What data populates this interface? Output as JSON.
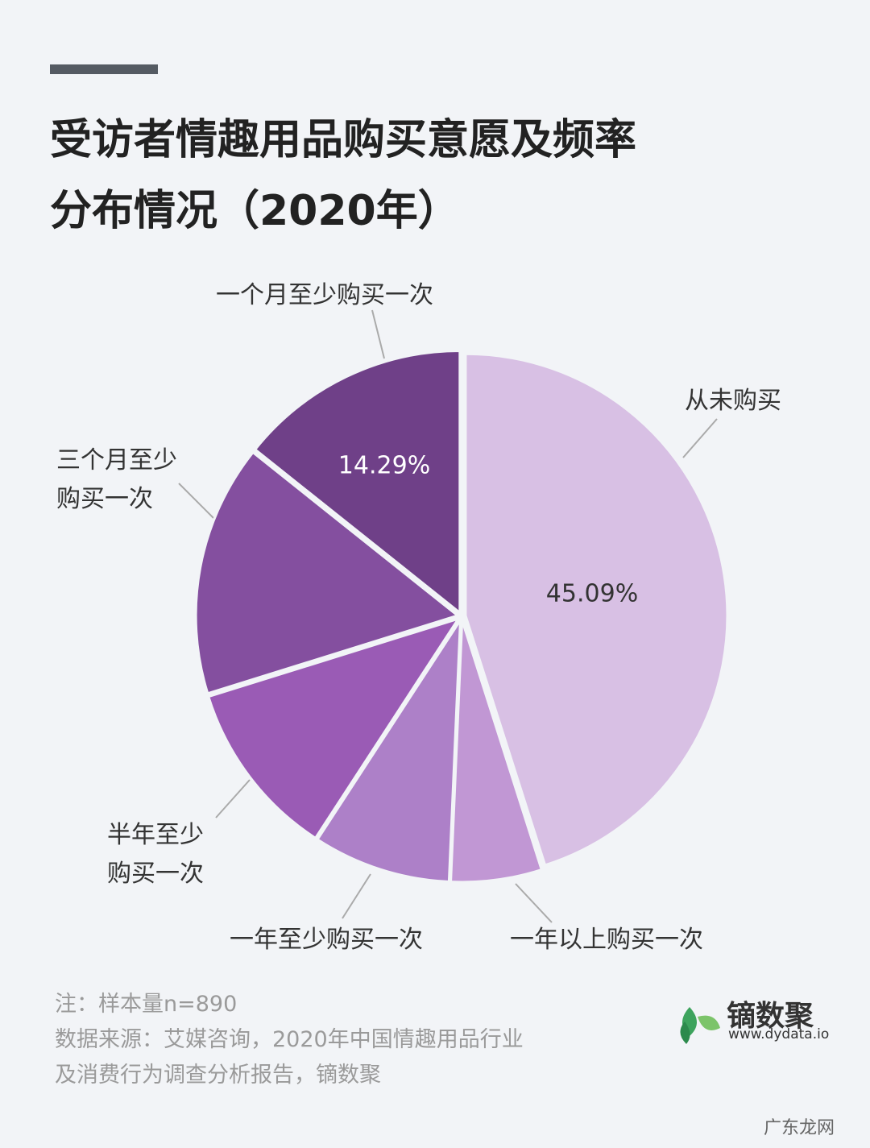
{
  "chart_data": {
    "type": "pie",
    "title": "受访者情趣用品购买意愿及频率\n分布情况（2020年）",
    "categories": [
      "从未购买",
      "一年以上购买一次",
      "一年至少购买一次",
      "半年至少\n购买一次",
      "三个月至少\n购买一次",
      "一个月至少购买一次"
    ],
    "values": [
      45.09,
      5.6,
      8.5,
      11.0,
      15.52,
      14.29
    ],
    "value_labels": [
      "45.09%",
      null,
      null,
      null,
      null,
      "14.29%"
    ],
    "colors": [
      "#d8c0e4",
      "#c197d4",
      "#ad80c8",
      "#9a5bb5",
      "#844f9f",
      "#6f4088"
    ],
    "notes": [
      "注：样本量n=890",
      "数据来源：艾媒咨询，2020年中国情趣用品行业\n及消费行为调查分析报告，镝数聚"
    ],
    "brand": "镝数聚",
    "brand_url": "www.dydata.io",
    "watermark": "广东龙网"
  }
}
